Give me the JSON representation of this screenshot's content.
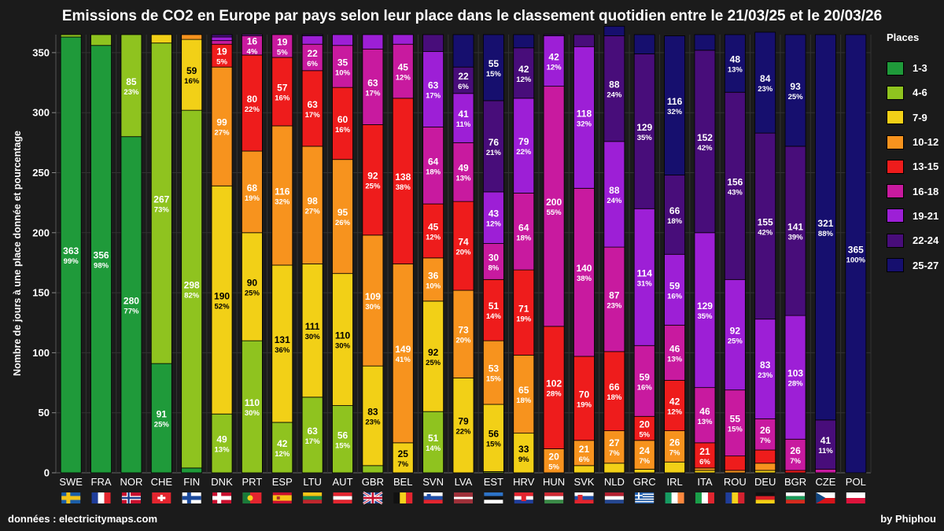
{
  "header": {
    "title": "Emissions de CO2 en Europe par pays selon leur place dans le classement quotidien entre le 21/03/25 et le 20/03/26"
  },
  "footer": {
    "source": "données : electricitymaps.com",
    "credit": "by Phiphou"
  },
  "legend": {
    "title": "Places"
  },
  "colors": {
    "background": "#1b1b1b",
    "grid": "#333333"
  },
  "chart_data": {
    "type": "bar",
    "stacked": true,
    "title": "Emissions de CO2 en Europe par pays selon leur place dans le classement quotidien entre le 21/03/25 et le 20/03/26",
    "xlabel": "",
    "ylabel": "Nombre de jours à une place donnée et pourcentage",
    "ylim": [
      0,
      365
    ],
    "yticks": [
      0,
      50,
      100,
      150,
      200,
      250,
      300,
      350
    ],
    "grid": true,
    "legend_position": "right",
    "categories": [
      "SWE",
      "FRA",
      "NOR",
      "CHE",
      "FIN",
      "DNK",
      "PRT",
      "ESP",
      "LTU",
      "AUT",
      "GBR",
      "BEL",
      "SVN",
      "LVA",
      "EST",
      "HRV",
      "HUN",
      "SVK",
      "NLD",
      "GRC",
      "IRL",
      "ITA",
      "ROU",
      "DEU",
      "BGR",
      "CZE",
      "POL"
    ],
    "flags": {
      "SWE": "sweden",
      "FRA": "france",
      "NOR": "norway",
      "CHE": "switzerland",
      "FIN": "finland",
      "DNK": "denmark",
      "PRT": "portugal",
      "ESP": "spain",
      "LTU": "lithuania",
      "AUT": "austria",
      "GBR": "united-kingdom",
      "BEL": "belgium",
      "SVN": "slovenia",
      "LVA": "latvia",
      "EST": "estonia",
      "HRV": "croatia",
      "HUN": "hungary",
      "SVK": "slovakia",
      "NLD": "netherlands",
      "GRC": "greece",
      "IRL": "ireland",
      "ITA": "italy",
      "ROU": "romania",
      "DEU": "germany",
      "BGR": "bulgaria",
      "CZE": "czechia",
      "POL": "poland"
    },
    "series": [
      {
        "name": "1-3",
        "color": "#1f9a3a",
        "text_color": "#ffffff",
        "values": [
          363,
          356,
          280,
          91,
          4,
          0,
          0,
          0,
          0,
          0,
          0,
          0,
          0,
          0,
          0,
          0,
          0,
          0,
          0,
          0,
          0,
          0,
          0,
          0,
          0,
          0,
          0
        ],
        "labels": [
          true,
          true,
          true,
          true,
          false,
          false,
          false,
          false,
          false,
          false,
          false,
          false,
          false,
          false,
          false,
          false,
          false,
          false,
          false,
          false,
          false,
          false,
          false,
          false,
          false,
          false,
          false
        ]
      },
      {
        "name": "4-6",
        "color": "#8fc31f",
        "text_color": "#ffffff",
        "values": [
          2,
          9,
          85,
          267,
          298,
          49,
          110,
          42,
          63,
          56,
          6,
          0,
          51,
          0,
          1,
          0,
          0,
          0,
          0,
          0,
          0,
          0,
          0,
          0,
          0,
          0,
          0
        ],
        "labels": [
          false,
          false,
          true,
          true,
          true,
          true,
          true,
          true,
          true,
          true,
          false,
          false,
          true,
          false,
          false,
          false,
          false,
          false,
          false,
          false,
          false,
          false,
          false,
          false,
          false,
          false,
          false
        ]
      },
      {
        "name": "7-9",
        "color": "#f2d017",
        "text_color": "#000000",
        "values": [
          0,
          0,
          0,
          7,
          59,
          190,
          90,
          131,
          111,
          110,
          83,
          25,
          92,
          79,
          56,
          33,
          0,
          6,
          8,
          3,
          9,
          2,
          0,
          2,
          0,
          0,
          0
        ],
        "labels": [
          false,
          false,
          false,
          false,
          true,
          true,
          true,
          true,
          true,
          true,
          true,
          true,
          true,
          true,
          true,
          true,
          false,
          false,
          false,
          false,
          false,
          false,
          false,
          false,
          false,
          false,
          false
        ]
      },
      {
        "name": "10-12",
        "color": "#f7931e",
        "text_color": "#ffffff",
        "values": [
          0,
          0,
          0,
          0,
          4,
          99,
          68,
          116,
          98,
          95,
          109,
          149,
          36,
          73,
          53,
          65,
          20,
          21,
          27,
          24,
          26,
          2,
          2,
          6,
          0,
          0,
          0
        ],
        "labels": [
          false,
          false,
          false,
          false,
          false,
          true,
          true,
          true,
          true,
          true,
          true,
          true,
          true,
          true,
          true,
          true,
          true,
          true,
          true,
          true,
          true,
          false,
          false,
          false,
          false,
          false,
          false
        ]
      },
      {
        "name": "13-15",
        "color": "#ee1c1c",
        "text_color": "#ffffff",
        "values": [
          0,
          0,
          0,
          0,
          0,
          19,
          80,
          57,
          63,
          60,
          92,
          138,
          45,
          74,
          51,
          71,
          102,
          70,
          66,
          20,
          42,
          21,
          12,
          11,
          2,
          0,
          0
        ],
        "labels": [
          false,
          false,
          false,
          false,
          false,
          true,
          true,
          true,
          true,
          true,
          true,
          true,
          true,
          true,
          true,
          true,
          true,
          true,
          true,
          true,
          true,
          true,
          false,
          false,
          false,
          false,
          false
        ]
      },
      {
        "name": "16-18",
        "color": "#c81a9f",
        "text_color": "#ffffff",
        "values": [
          0,
          0,
          0,
          0,
          0,
          3,
          16,
          19,
          22,
          35,
          63,
          45,
          64,
          49,
          30,
          64,
          200,
          140,
          87,
          59,
          46,
          46,
          55,
          26,
          26,
          3,
          0
        ],
        "labels": [
          false,
          false,
          false,
          false,
          false,
          false,
          true,
          true,
          true,
          true,
          true,
          true,
          true,
          true,
          true,
          true,
          true,
          true,
          true,
          true,
          true,
          true,
          true,
          true,
          true,
          false,
          false
        ]
      },
      {
        "name": "19-21",
        "color": "#9d1fd6",
        "text_color": "#ffffff",
        "values": [
          0,
          0,
          0,
          0,
          0,
          3,
          1,
          0,
          7,
          9,
          12,
          8,
          63,
          41,
          43,
          79,
          42,
          118,
          88,
          114,
          59,
          129,
          92,
          83,
          103,
          0,
          0
        ],
        "labels": [
          false,
          false,
          false,
          false,
          false,
          false,
          false,
          false,
          false,
          false,
          false,
          false,
          true,
          true,
          true,
          true,
          true,
          true,
          true,
          true,
          true,
          true,
          true,
          true,
          true,
          false,
          false
        ]
      },
      {
        "name": "22-24",
        "color": "#480d7a",
        "text_color": "#ffffff",
        "values": [
          0,
          0,
          0,
          0,
          0,
          2,
          0,
          0,
          1,
          0,
          0,
          0,
          14,
          22,
          76,
          42,
          1,
          10,
          88,
          129,
          66,
          152,
          156,
          155,
          141,
          41,
          0
        ],
        "labels": [
          false,
          false,
          false,
          false,
          false,
          false,
          false,
          false,
          false,
          false,
          false,
          false,
          false,
          true,
          true,
          true,
          false,
          false,
          true,
          true,
          true,
          true,
          true,
          true,
          true,
          true,
          false
        ]
      },
      {
        "name": "25-27",
        "color": "#160f6e",
        "text_color": "#ffffff",
        "values": [
          0,
          0,
          0,
          0,
          0,
          0,
          0,
          0,
          0,
          0,
          0,
          0,
          0,
          27,
          55,
          11,
          0,
          0,
          8,
          16,
          116,
          13,
          48,
          84,
          93,
          321,
          365
        ],
        "labels": [
          false,
          false,
          false,
          false,
          false,
          false,
          false,
          false,
          false,
          false,
          false,
          false,
          false,
          false,
          true,
          false,
          false,
          false,
          false,
          false,
          true,
          false,
          true,
          true,
          true,
          true,
          true
        ]
      }
    ]
  }
}
